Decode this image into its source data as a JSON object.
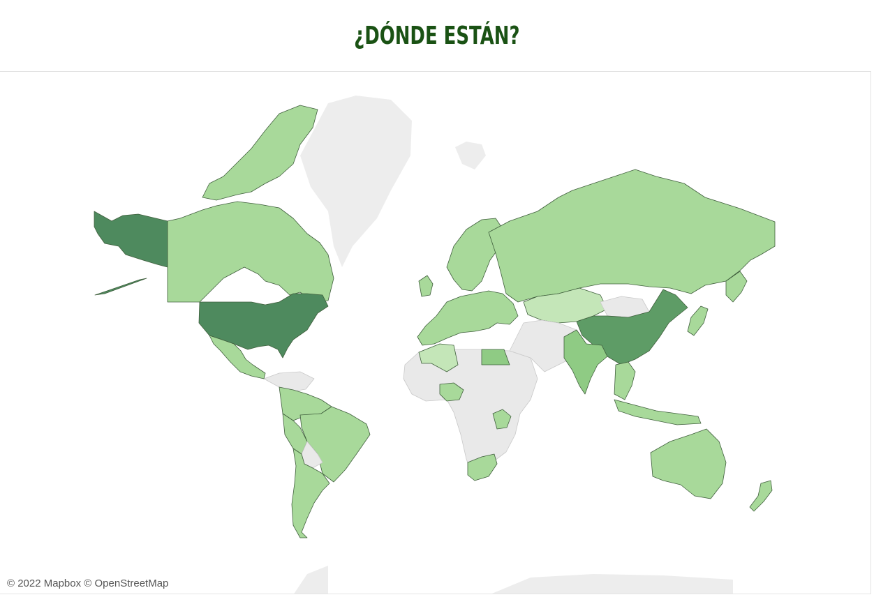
{
  "header": {
    "title": "¿DÓNDE ESTÁN?"
  },
  "map": {
    "attribution": "© 2022 Mapbox © OpenStreetMap",
    "colors": {
      "highest": "#4e8a5e",
      "high": "#5e9c66",
      "medium": "#8fcb84",
      "low": "#a8d99a",
      "lowest": "#c4e6b8",
      "no_data": "#e9e9e9",
      "basemap": "#ededed",
      "title": "#1a5214"
    },
    "regions": [
      {
        "name": "Alaska",
        "level": "highest"
      },
      {
        "name": "Canada",
        "level": "low"
      },
      {
        "name": "United States",
        "level": "highest"
      },
      {
        "name": "Mexico",
        "level": "low"
      },
      {
        "name": "Brazil",
        "level": "low"
      },
      {
        "name": "Argentina",
        "level": "low"
      },
      {
        "name": "Russia",
        "level": "low"
      },
      {
        "name": "Kazakhstan",
        "level": "lowest"
      },
      {
        "name": "China",
        "level": "high"
      },
      {
        "name": "India",
        "level": "medium"
      },
      {
        "name": "Australia",
        "level": "low"
      },
      {
        "name": "Algeria",
        "level": "lowest"
      },
      {
        "name": "Egypt",
        "level": "medium"
      },
      {
        "name": "Nigeria",
        "level": "low"
      },
      {
        "name": "South Africa",
        "level": "low"
      },
      {
        "name": "Europe",
        "level": "low"
      },
      {
        "name": "Japan",
        "level": "low"
      },
      {
        "name": "Indonesia",
        "level": "low"
      },
      {
        "name": "New Zealand",
        "level": "low"
      },
      {
        "name": "Greenland",
        "level": "no_data"
      },
      {
        "name": "Mongolia",
        "level": "no_data"
      }
    ]
  }
}
